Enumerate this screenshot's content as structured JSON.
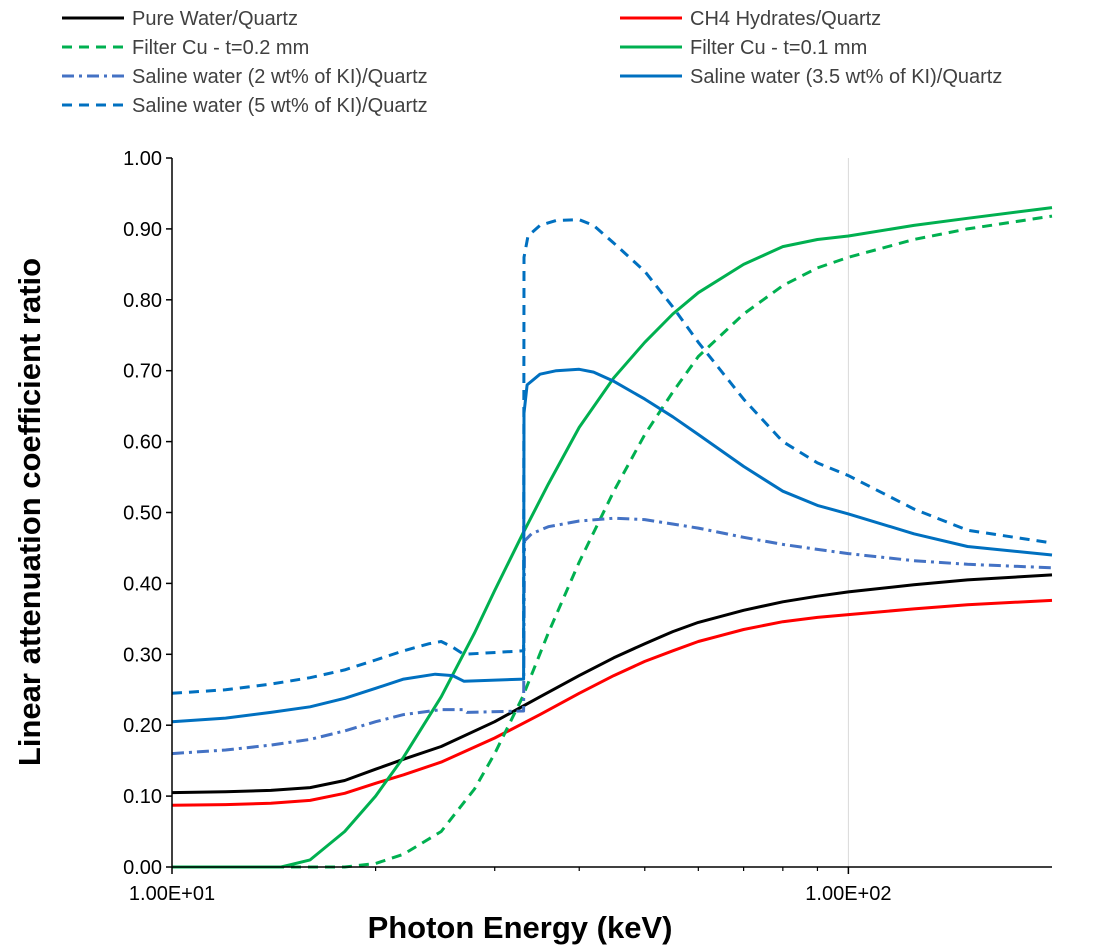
{
  "chart_data": {
    "type": "line",
    "title": "",
    "xlabel": "Photon Energy (keV)",
    "ylabel": "Linear attenuation coefficient  ratio",
    "x_scale": "log",
    "xlim": [
      10,
      200
    ],
    "ylim": [
      0,
      1
    ],
    "grid": "vertical major gridlines only",
    "legend_position": "top",
    "x_tick_labels": [
      {
        "value": 10,
        "label": "1.00E+01"
      },
      {
        "value": 100,
        "label": "1.00E+02"
      }
    ],
    "y_tick_labels": [
      {
        "value": 0.0,
        "label": "0.00"
      },
      {
        "value": 0.1,
        "label": "0.10"
      },
      {
        "value": 0.2,
        "label": "0.20"
      },
      {
        "value": 0.3,
        "label": "0.30"
      },
      {
        "value": 0.4,
        "label": "0.40"
      },
      {
        "value": 0.5,
        "label": "0.50"
      },
      {
        "value": 0.6,
        "label": "0.60"
      },
      {
        "value": 0.7,
        "label": "0.70"
      },
      {
        "value": 0.8,
        "label": "0.80"
      },
      {
        "value": 0.9,
        "label": "0.90"
      },
      {
        "value": 1.0,
        "label": "1.00"
      }
    ],
    "series": [
      {
        "name": "Pure Water/Quartz",
        "color": "#000000",
        "dash": "solid",
        "points": [
          [
            10,
            0.105
          ],
          [
            12,
            0.106
          ],
          [
            14,
            0.108
          ],
          [
            16,
            0.112
          ],
          [
            18,
            0.122
          ],
          [
            20,
            0.138
          ],
          [
            22,
            0.152
          ],
          [
            25,
            0.17
          ],
          [
            30,
            0.205
          ],
          [
            35,
            0.24
          ],
          [
            40,
            0.27
          ],
          [
            45,
            0.295
          ],
          [
            50,
            0.315
          ],
          [
            55,
            0.332
          ],
          [
            60,
            0.345
          ],
          [
            70,
            0.362
          ],
          [
            80,
            0.374
          ],
          [
            90,
            0.382
          ],
          [
            100,
            0.388
          ],
          [
            125,
            0.398
          ],
          [
            150,
            0.405
          ],
          [
            200,
            0.412
          ]
        ]
      },
      {
        "name": "CH4 Hydrates/Quartz",
        "color": "#ff0000",
        "dash": "solid",
        "points": [
          [
            10,
            0.087
          ],
          [
            12,
            0.088
          ],
          [
            14,
            0.09
          ],
          [
            16,
            0.094
          ],
          [
            18,
            0.104
          ],
          [
            20,
            0.118
          ],
          [
            22,
            0.13
          ],
          [
            25,
            0.148
          ],
          [
            30,
            0.182
          ],
          [
            35,
            0.215
          ],
          [
            40,
            0.245
          ],
          [
            45,
            0.27
          ],
          [
            50,
            0.29
          ],
          [
            55,
            0.305
          ],
          [
            60,
            0.318
          ],
          [
            70,
            0.335
          ],
          [
            80,
            0.346
          ],
          [
            90,
            0.352
          ],
          [
            100,
            0.356
          ],
          [
            125,
            0.364
          ],
          [
            150,
            0.37
          ],
          [
            200,
            0.376
          ]
        ]
      },
      {
        "name": "Filter Cu - t=0.2 mm",
        "color": "#00b050",
        "dash": "dashed",
        "points": [
          [
            10,
            0
          ],
          [
            18,
            0
          ],
          [
            20,
            0.005
          ],
          [
            22,
            0.018
          ],
          [
            25,
            0.05
          ],
          [
            28,
            0.11
          ],
          [
            30,
            0.16
          ],
          [
            33,
            0.24
          ],
          [
            36,
            0.33
          ],
          [
            40,
            0.43
          ],
          [
            45,
            0.53
          ],
          [
            50,
            0.61
          ],
          [
            55,
            0.67
          ],
          [
            60,
            0.72
          ],
          [
            70,
            0.78
          ],
          [
            80,
            0.82
          ],
          [
            90,
            0.845
          ],
          [
            100,
            0.86
          ],
          [
            125,
            0.885
          ],
          [
            150,
            0.9
          ],
          [
            200,
            0.918
          ]
        ]
      },
      {
        "name": "Filter Cu - t=0.1 mm",
        "color": "#00b050",
        "dash": "solid",
        "points": [
          [
            10,
            0
          ],
          [
            14.5,
            0
          ],
          [
            16,
            0.01
          ],
          [
            18,
            0.05
          ],
          [
            20,
            0.1
          ],
          [
            22,
            0.155
          ],
          [
            25,
            0.24
          ],
          [
            28,
            0.33
          ],
          [
            30,
            0.39
          ],
          [
            33,
            0.47
          ],
          [
            36,
            0.54
          ],
          [
            40,
            0.62
          ],
          [
            45,
            0.69
          ],
          [
            50,
            0.74
          ],
          [
            55,
            0.78
          ],
          [
            60,
            0.81
          ],
          [
            70,
            0.85
          ],
          [
            80,
            0.875
          ],
          [
            90,
            0.885
          ],
          [
            100,
            0.89
          ],
          [
            125,
            0.905
          ],
          [
            150,
            0.915
          ],
          [
            200,
            0.93
          ]
        ]
      },
      {
        "name": "Saline water (2 wt% of KI)/Quartz",
        "color": "#4472c4",
        "dash": "dashdot",
        "points": [
          [
            10,
            0.16
          ],
          [
            12,
            0.165
          ],
          [
            14,
            0.172
          ],
          [
            16,
            0.18
          ],
          [
            18,
            0.192
          ],
          [
            20,
            0.205
          ],
          [
            22,
            0.215
          ],
          [
            25,
            0.222
          ],
          [
            27,
            0.222
          ],
          [
            27.3,
            0.218
          ],
          [
            33.1,
            0.22
          ],
          [
            33.2,
            0.46
          ],
          [
            34,
            0.47
          ],
          [
            36,
            0.48
          ],
          [
            40,
            0.488
          ],
          [
            45,
            0.492
          ],
          [
            50,
            0.49
          ],
          [
            60,
            0.478
          ],
          [
            70,
            0.465
          ],
          [
            80,
            0.455
          ],
          [
            90,
            0.448
          ],
          [
            100,
            0.442
          ],
          [
            125,
            0.432
          ],
          [
            150,
            0.427
          ],
          [
            200,
            0.422
          ]
        ]
      },
      {
        "name": "Saline water (3.5 wt% of KI)/Quartz",
        "color": "#0070c0",
        "dash": "solid",
        "points": [
          [
            10,
            0.205
          ],
          [
            12,
            0.21
          ],
          [
            14,
            0.218
          ],
          [
            16,
            0.226
          ],
          [
            18,
            0.238
          ],
          [
            20,
            0.252
          ],
          [
            22,
            0.265
          ],
          [
            24.5,
            0.272
          ],
          [
            26,
            0.27
          ],
          [
            27,
            0.262
          ],
          [
            33.1,
            0.265
          ],
          [
            33.15,
            0.64
          ],
          [
            33.5,
            0.68
          ],
          [
            35,
            0.695
          ],
          [
            37,
            0.7
          ],
          [
            40,
            0.702
          ],
          [
            42,
            0.698
          ],
          [
            45,
            0.685
          ],
          [
            50,
            0.66
          ],
          [
            55,
            0.635
          ],
          [
            60,
            0.61
          ],
          [
            70,
            0.565
          ],
          [
            80,
            0.53
          ],
          [
            90,
            0.51
          ],
          [
            100,
            0.498
          ],
          [
            125,
            0.47
          ],
          [
            150,
            0.452
          ],
          [
            200,
            0.44
          ]
        ]
      },
      {
        "name": "Saline water (5 wt% of KI)/Quartz",
        "color": "#0070c0",
        "dash": "dashed",
        "points": [
          [
            10,
            0.245
          ],
          [
            12,
            0.25
          ],
          [
            14,
            0.258
          ],
          [
            16,
            0.267
          ],
          [
            18,
            0.278
          ],
          [
            20,
            0.292
          ],
          [
            22,
            0.305
          ],
          [
            24,
            0.315
          ],
          [
            25,
            0.318
          ],
          [
            26,
            0.31
          ],
          [
            27,
            0.3
          ],
          [
            33.1,
            0.305
          ],
          [
            33.15,
            0.86
          ],
          [
            33.6,
            0.89
          ],
          [
            35,
            0.905
          ],
          [
            37,
            0.912
          ],
          [
            40,
            0.913
          ],
          [
            42,
            0.905
          ],
          [
            45,
            0.88
          ],
          [
            50,
            0.84
          ],
          [
            55,
            0.79
          ],
          [
            60,
            0.74
          ],
          [
            70,
            0.66
          ],
          [
            80,
            0.6
          ],
          [
            90,
            0.57
          ],
          [
            100,
            0.552
          ],
          [
            125,
            0.505
          ],
          [
            150,
            0.475
          ],
          [
            200,
            0.457
          ]
        ]
      }
    ]
  }
}
